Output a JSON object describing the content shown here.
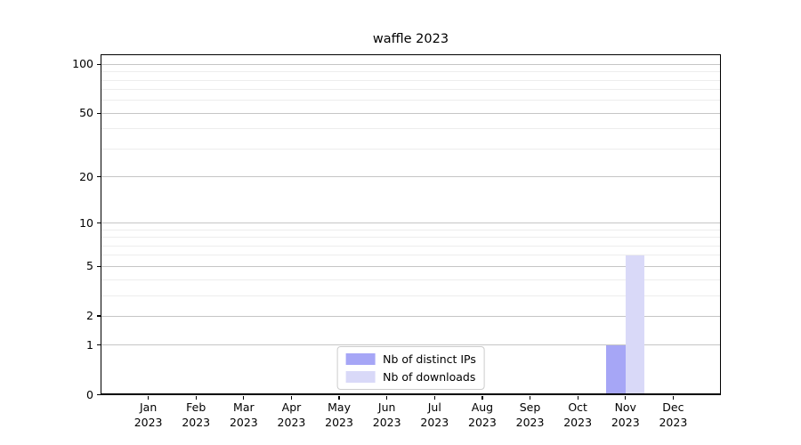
{
  "chart_data": {
    "type": "bar",
    "title": "waffle 2023",
    "categories": [
      "Jan 2023",
      "Feb 2023",
      "Mar 2023",
      "Apr 2023",
      "May 2023",
      "Jun 2023",
      "Jul 2023",
      "Aug 2023",
      "Sep 2023",
      "Oct 2023",
      "Nov 2023",
      "Dec 2023"
    ],
    "series": [
      {
        "name": "Nb of distinct IPs",
        "color": "#a6a6f6",
        "values": [
          0,
          0,
          0,
          0,
          0,
          0,
          0,
          0,
          0,
          0,
          1,
          0
        ]
      },
      {
        "name": "Nb of downloads",
        "color": "#d9d9f8",
        "values": [
          0,
          0,
          0,
          0,
          0,
          0,
          0,
          0,
          0,
          0,
          6,
          0
        ]
      }
    ],
    "yscale": "log1p",
    "yticks": [
      0,
      1,
      2,
      5,
      10,
      20,
      50,
      100
    ],
    "minor_yticks": [
      3,
      4,
      6,
      7,
      8,
      9,
      30,
      40,
      60,
      70,
      80,
      90
    ],
    "ylim": [
      0,
      116
    ],
    "xlabel": "",
    "ylabel": "",
    "grid": true,
    "legend_position": "lower center",
    "bar_width_fraction": 0.4
  }
}
